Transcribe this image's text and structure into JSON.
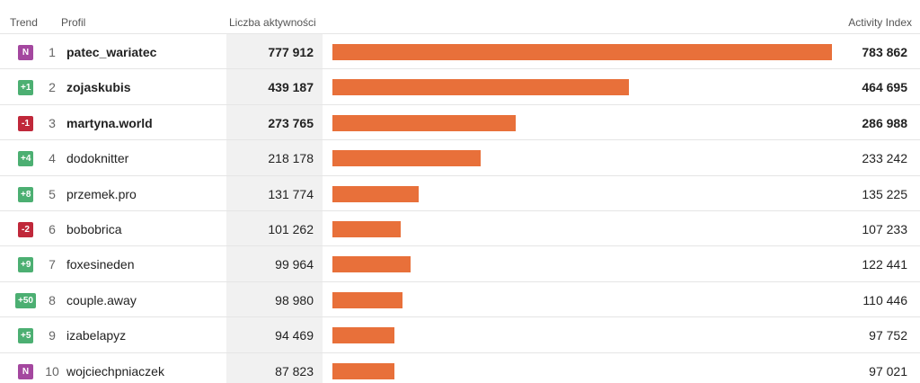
{
  "header": {
    "trend": "Trend",
    "profil": "Profil",
    "liczba": "Liczba aktywności",
    "activity_index": "Activity Index"
  },
  "colors": {
    "bar": "#e8703a",
    "new": "#a4479f",
    "up": "#4caf72",
    "down": "#c0283a"
  },
  "rows": [
    {
      "trend": "N",
      "trend_type": "new",
      "rank": "1",
      "name": "patec_wariatec",
      "count": "777 912",
      "index": "783 862",
      "index_value": 783862,
      "bold": true
    },
    {
      "trend": "+1",
      "trend_type": "up",
      "rank": "2",
      "name": "zojaskubis",
      "count": "439 187",
      "index": "464 695",
      "index_value": 464695,
      "bold": true
    },
    {
      "trend": "-1",
      "trend_type": "down",
      "rank": "3",
      "name": "martyna.world",
      "count": "273 765",
      "index": "286 988",
      "index_value": 286988,
      "bold": true
    },
    {
      "trend": "+4",
      "trend_type": "up",
      "rank": "4",
      "name": "dodoknitter",
      "count": "218 178",
      "index": "233 242",
      "index_value": 233242,
      "bold": false
    },
    {
      "trend": "+8",
      "trend_type": "up",
      "rank": "5",
      "name": "przemek.pro",
      "count": "131 774",
      "index": "135 225",
      "index_value": 135225,
      "bold": false
    },
    {
      "trend": "-2",
      "trend_type": "down",
      "rank": "6",
      "name": "bobobrica",
      "count": "101 262",
      "index": "107 233",
      "index_value": 107233,
      "bold": false
    },
    {
      "trend": "+9",
      "trend_type": "up",
      "rank": "7",
      "name": "foxesineden",
      "count": "99 964",
      "index": "122 441",
      "index_value": 122441,
      "bold": false
    },
    {
      "trend": "+50",
      "trend_type": "up",
      "rank": "8",
      "name": "couple.away",
      "count": "98 980",
      "index": "110 446",
      "index_value": 110446,
      "bold": false
    },
    {
      "trend": "+5",
      "trend_type": "up",
      "rank": "9",
      "name": "izabelapyz",
      "count": "94 469",
      "index": "97 752",
      "index_value": 97752,
      "bold": false
    },
    {
      "trend": "N",
      "trend_type": "new",
      "rank": "10",
      "name": "wojciechpniaczek",
      "count": "87 823",
      "index": "97 021",
      "index_value": 97021,
      "bold": false
    }
  ]
}
